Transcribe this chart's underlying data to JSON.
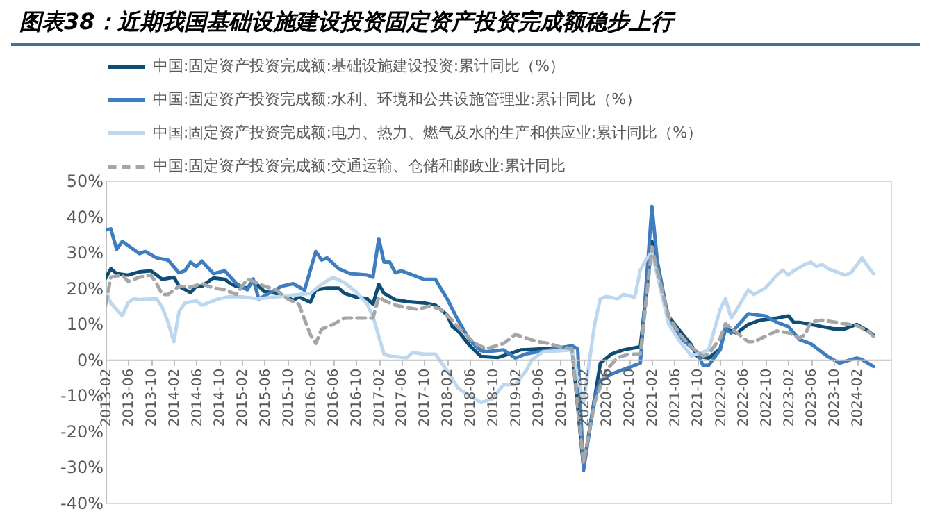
{
  "chart_data": {
    "type": "line",
    "title": "图表38：近期我国基础设施建设投资固定资产投资完成额稳步上行",
    "xlim": [
      "2013-02",
      "2024-08"
    ],
    "xticks": [
      "2013-02",
      "2013-06",
      "2013-10",
      "2014-02",
      "2014-06",
      "2014-10",
      "2015-02",
      "2015-06",
      "2015-10",
      "2016-02",
      "2016-06",
      "2016-10",
      "2017-02",
      "2017-06",
      "2017-10",
      "2018-02",
      "2018-06",
      "2018-10",
      "2019-02",
      "2019-06",
      "2019-10",
      "2020-02",
      "2020-06",
      "2020-10",
      "2021-02",
      "2021-06",
      "2021-10",
      "2022-02",
      "2022-06",
      "2022-10",
      "2023-02",
      "2023-06",
      "2023-10",
      "2024-02"
    ],
    "ylim": [
      -40,
      50
    ],
    "yticks": [
      {
        "value": -40,
        "label": "-40%"
      },
      {
        "value": -30,
        "label": "-30%"
      },
      {
        "value": -20,
        "label": "-20%"
      },
      {
        "value": -10,
        "label": "-10%"
      },
      {
        "value": 0,
        "label": "0%"
      },
      {
        "value": 10,
        "label": "10%"
      },
      {
        "value": 20,
        "label": "20%"
      },
      {
        "value": 30,
        "label": "30%"
      },
      {
        "value": 40,
        "label": "40%"
      },
      {
        "value": 50,
        "label": "50%"
      }
    ],
    "legend": "top",
    "series": [
      {
        "name": "中国:固定资产投资完成额:基础设施建设投资:累计同比（%）",
        "color": "#0e4d74",
        "x": [
          "2013-02",
          "2013-03",
          "2013-04",
          "2013-06",
          "2013-08",
          "2013-10",
          "2013-11",
          "2013-12",
          "2014-02",
          "2014-03",
          "2014-05",
          "2014-06",
          "2014-07",
          "2014-09",
          "2014-11",
          "2014-12",
          "2015-01",
          "2015-03",
          "2015-04",
          "2015-06",
          "2015-08",
          "2015-10",
          "2015-11",
          "2015-12",
          "2016-02",
          "2016-03",
          "2016-05",
          "2016-07",
          "2016-08",
          "2016-10",
          "2016-12",
          "2017-01",
          "2017-02",
          "2017-03",
          "2017-05",
          "2017-07",
          "2017-10",
          "2017-12",
          "2018-02",
          "2018-03",
          "2018-04",
          "2018-06",
          "2018-08",
          "2018-11",
          "2019-01",
          "2019-03",
          "2019-07",
          "2019-12",
          "2020-02",
          "2020-05",
          "2020-07",
          "2020-09",
          "2020-12",
          "2021-02",
          "2021-03",
          "2021-05",
          "2021-07",
          "2021-09",
          "2021-10",
          "2021-12",
          "2022-02",
          "2022-03",
          "2022-05",
          "2022-07",
          "2022-09",
          "2022-12",
          "2023-02",
          "2023-03",
          "2023-04",
          "2023-06",
          "2023-08",
          "2023-10",
          "2023-12",
          "2024-02",
          "2024-04",
          "2024-05"
        ],
        "values": [
          22.7,
          25.4,
          24,
          23.6,
          24.5,
          24.8,
          23.6,
          22.4,
          23,
          20.5,
          18.7,
          20.5,
          20.5,
          22.8,
          22.4,
          21.2,
          20.5,
          20,
          22,
          19,
          18.5,
          17.5,
          16.5,
          17.5,
          16,
          19.5,
          20,
          20,
          18.5,
          17.5,
          17,
          15.5,
          21,
          18.5,
          16.7,
          16.2,
          15.8,
          15.2,
          12.5,
          9.2,
          8,
          4,
          0.9,
          0.6,
          1.6,
          2.7,
          3,
          3.6,
          -30,
          -1,
          1.6,
          2.7,
          3.6,
          33,
          25,
          12,
          8,
          4,
          1,
          0.4,
          3,
          8.6,
          7.4,
          9.8,
          11,
          11.6,
          12.2,
          10.4,
          10.4,
          9.8,
          9.2,
          8.6,
          8.6,
          9.8,
          8,
          6.8
        ]
      },
      {
        "name": "中国:固定资产投资完成额:水利、环境和公共设施管理业:累计同比（%）",
        "color": "#3e7dc0",
        "x": [
          "2013-02",
          "2013-03",
          "2013-04",
          "2013-05",
          "2013-08",
          "2013-09",
          "2013-11",
          "2014-01",
          "2014-03",
          "2014-04",
          "2014-05",
          "2014-06",
          "2014-07",
          "2014-09",
          "2014-11",
          "2015-01",
          "2015-03",
          "2015-04",
          "2015-05",
          "2015-07",
          "2015-09",
          "2015-11",
          "2016-01",
          "2016-03",
          "2016-04",
          "2016-05",
          "2016-07",
          "2016-09",
          "2016-12",
          "2017-01",
          "2017-02",
          "2017-03",
          "2017-04",
          "2017-05",
          "2017-06",
          "2017-09",
          "2017-10",
          "2017-12",
          "2018-02",
          "2018-04",
          "2018-06",
          "2018-08",
          "2018-09",
          "2018-12",
          "2019-02",
          "2019-04",
          "2019-08",
          "2019-12",
          "2020-01",
          "2020-02",
          "2020-04",
          "2020-05",
          "2020-07",
          "2020-12",
          "2021-02",
          "2021-03",
          "2021-05",
          "2021-07",
          "2021-10",
          "2021-11",
          "2021-12",
          "2022-02",
          "2022-03",
          "2022-04",
          "2022-07",
          "2022-10",
          "2022-12",
          "2023-02",
          "2023-04",
          "2023-06",
          "2023-09",
          "2023-11",
          "2023-12",
          "2024-02",
          "2024-03",
          "2024-05"
        ],
        "values": [
          36.2,
          36.5,
          30.8,
          33,
          29.6,
          30.2,
          28.4,
          27.8,
          24.2,
          24.8,
          27.2,
          26,
          27.5,
          24,
          24.8,
          21.2,
          19.5,
          22.5,
          16.9,
          18.7,
          20.5,
          21.2,
          19.4,
          30.2,
          27.8,
          28.4,
          25.4,
          24,
          23.6,
          23,
          33.8,
          27.2,
          27.2,
          24.2,
          24.8,
          23,
          22.4,
          22.4,
          17,
          11,
          5.6,
          2.5,
          2.2,
          2.7,
          0.4,
          1.6,
          2.7,
          3.9,
          3,
          -31,
          -10.4,
          -6,
          -4,
          -1,
          42.8,
          27.8,
          11,
          6.2,
          2,
          -1.6,
          -1.6,
          2.7,
          8.6,
          7.4,
          12.8,
          12.2,
          10.4,
          9.2,
          5.6,
          4.4,
          0.8,
          -1,
          -0.5,
          0.4,
          0,
          -1.9
        ]
      },
      {
        "name": "中国:固定资产投资完成额:电力、热力、燃气及水的生产和供应业:累计同比（%）",
        "color": "#bdd7ee",
        "x": [
          "2013-02",
          "2013-03",
          "2013-05",
          "2013-06",
          "2013-07",
          "2013-08",
          "2013-11",
          "2013-12",
          "2014-01",
          "2014-02",
          "2014-03",
          "2014-04",
          "2014-06",
          "2014-07",
          "2014-10",
          "2014-12",
          "2015-02",
          "2015-05",
          "2015-08",
          "2015-11",
          "2016-02",
          "2016-04",
          "2016-06",
          "2016-08",
          "2016-10",
          "2016-12",
          "2017-01",
          "2017-03",
          "2017-04",
          "2017-07",
          "2017-08",
          "2017-10",
          "2017-12",
          "2018-02",
          "2018-04",
          "2018-06",
          "2018-08",
          "2018-10",
          "2018-12",
          "2019-02",
          "2019-04",
          "2019-05",
          "2019-07",
          "2019-10",
          "2019-12",
          "2020-02",
          "2020-04",
          "2020-05",
          "2020-06",
          "2020-08",
          "2020-09",
          "2020-11",
          "2020-12",
          "2021-01",
          "2021-02",
          "2021-05",
          "2021-07",
          "2021-09",
          "2021-12",
          "2022-02",
          "2022-03",
          "2022-04",
          "2022-05",
          "2022-07",
          "2022-08",
          "2022-10",
          "2022-11",
          "2022-12",
          "2023-01",
          "2023-02",
          "2023-03",
          "2023-05",
          "2023-06",
          "2023-07",
          "2023-08",
          "2023-09",
          "2023-12",
          "2024-01",
          "2024-03",
          "2024-04",
          "2024-05"
        ],
        "values": [
          19.4,
          15.8,
          12.2,
          15.8,
          17,
          16.8,
          17,
          14.6,
          10.4,
          5,
          13.4,
          15.8,
          16.4,
          15.2,
          17,
          17.6,
          17.5,
          17,
          17.5,
          18,
          18.5,
          21,
          23,
          21.5,
          19,
          15.5,
          12,
          1.5,
          1,
          0.5,
          2,
          1.5,
          1.5,
          -3,
          -8,
          -10,
          -12,
          -11,
          -7,
          -7,
          -3,
          0,
          2.2,
          2.5,
          2.7,
          -12,
          10,
          17,
          17.6,
          17,
          18.2,
          17.4,
          25,
          28,
          30,
          10,
          5,
          1,
          2.7,
          14,
          17,
          11.6,
          14,
          19.4,
          18.2,
          20,
          21.8,
          23.6,
          25,
          23.6,
          24.8,
          26.6,
          27.2,
          26,
          26.6,
          25.4,
          23.6,
          24.2,
          28.4,
          26,
          24
        ]
      },
      {
        "name": "中国:固定资产投资完成额:交通运输、仓储和邮政业:累计同比",
        "color": "#a6a6a6",
        "line_style": "dashed",
        "x": [
          "2013-02",
          "2013-03",
          "2013-05",
          "2013-06",
          "2013-08",
          "2013-10",
          "2013-11",
          "2013-12",
          "2014-01",
          "2014-03",
          "2014-05",
          "2014-07",
          "2014-09",
          "2014-11",
          "2015-01",
          "2015-03",
          "2015-06",
          "2015-08",
          "2015-10",
          "2015-12",
          "2016-02",
          "2016-03",
          "2016-04",
          "2016-06",
          "2016-08",
          "2016-11",
          "2017-01",
          "2017-02",
          "2017-03",
          "2017-05",
          "2017-07",
          "2017-09",
          "2017-11",
          "2018-01",
          "2018-03",
          "2018-04",
          "2018-05",
          "2018-07",
          "2018-09",
          "2018-10",
          "2018-12",
          "2019-02",
          "2019-04",
          "2019-06",
          "2019-08",
          "2019-10",
          "2019-12",
          "2020-02",
          "2020-04",
          "2020-06",
          "2020-08",
          "2020-10",
          "2020-12",
          "2021-02",
          "2021-03",
          "2021-05",
          "2021-07",
          "2021-09",
          "2021-11",
          "2021-12",
          "2022-02",
          "2022-03",
          "2022-05",
          "2022-07",
          "2022-08",
          "2022-10",
          "2022-12",
          "2023-02",
          "2023-04",
          "2023-05",
          "2023-06",
          "2023-08",
          "2023-10",
          "2023-12",
          "2024-02",
          "2024-04",
          "2024-05"
        ],
        "values": [
          15.2,
          23,
          23.6,
          21.8,
          23,
          23.6,
          21.2,
          18.2,
          18.2,
          20.5,
          20.2,
          21.2,
          20,
          19.5,
          18.2,
          22.5,
          20.5,
          19.5,
          17,
          15.5,
          7,
          4.5,
          8.5,
          9.8,
          11.6,
          11.6,
          11.6,
          17.5,
          16.5,
          15.2,
          14.5,
          14,
          15,
          14,
          11,
          9,
          7.5,
          4.5,
          3,
          3.5,
          4.5,
          7,
          6,
          5,
          4.5,
          3.5,
          3,
          -29,
          -12,
          -3,
          0.5,
          1.5,
          1.5,
          31.5,
          25,
          12,
          7,
          3.5,
          1,
          1.5,
          6,
          10,
          7.5,
          5,
          5,
          6.5,
          8,
          7.5,
          6,
          7,
          10.5,
          11,
          10.5,
          10,
          9.5,
          8,
          6.5
        ]
      }
    ]
  }
}
